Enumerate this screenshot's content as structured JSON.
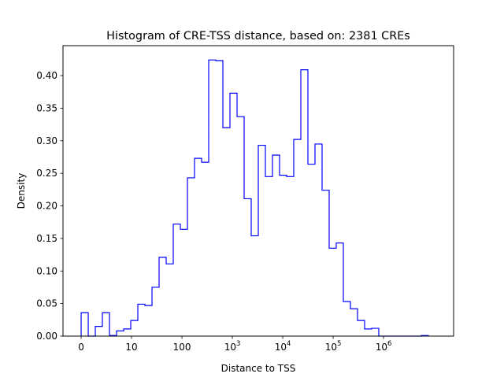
{
  "chart_data": {
    "type": "histogram",
    "title": "Histogram of CRE-TSS distance, based on: 2381 CREs",
    "xlabel": "Distance to TSS",
    "ylabel": "Density",
    "x_scale": "log10(distance+1)",
    "xlim": [
      -0.36,
      7.39
    ],
    "ylim": [
      0,
      0.446
    ],
    "grid": false,
    "color": "#0000ff",
    "bin_start": 0,
    "bin_width": 0.1406,
    "values": [
      0.036,
      0,
      0.015,
      0.036,
      0.001,
      0.008,
      0.011,
      0.024,
      0.049,
      0.047,
      0.075,
      0.121,
      0.111,
      0.172,
      0.164,
      0.243,
      0.273,
      0.267,
      0.424,
      0.423,
      0.32,
      0.373,
      0.337,
      0.211,
      0.154,
      0.293,
      0.245,
      0.278,
      0.247,
      0.245,
      0.302,
      0.409,
      0.264,
      0.295,
      0.224,
      0.135,
      0.143,
      0.053,
      0.042,
      0.024,
      0.011,
      0.012,
      0,
      0,
      0,
      0,
      0,
      0,
      0.001
    ],
    "xticks": [
      {
        "value": 0,
        "label": "0"
      },
      {
        "value": 1,
        "label": "10"
      },
      {
        "value": 2,
        "label": "100"
      },
      {
        "value": 3,
        "base": "10",
        "exp": "3"
      },
      {
        "value": 4,
        "base": "10",
        "exp": "4"
      },
      {
        "value": 5,
        "base": "10",
        "exp": "5"
      },
      {
        "value": 6,
        "base": "10",
        "exp": "6"
      }
    ],
    "yticks": [
      {
        "value": 0.0,
        "label": "0.00"
      },
      {
        "value": 0.05,
        "label": "0.05"
      },
      {
        "value": 0.1,
        "label": "0.10"
      },
      {
        "value": 0.15,
        "label": "0.15"
      },
      {
        "value": 0.2,
        "label": "0.20"
      },
      {
        "value": 0.25,
        "label": "0.25"
      },
      {
        "value": 0.3,
        "label": "0.30"
      },
      {
        "value": 0.35,
        "label": "0.35"
      },
      {
        "value": 0.4,
        "label": "0.40"
      }
    ]
  }
}
